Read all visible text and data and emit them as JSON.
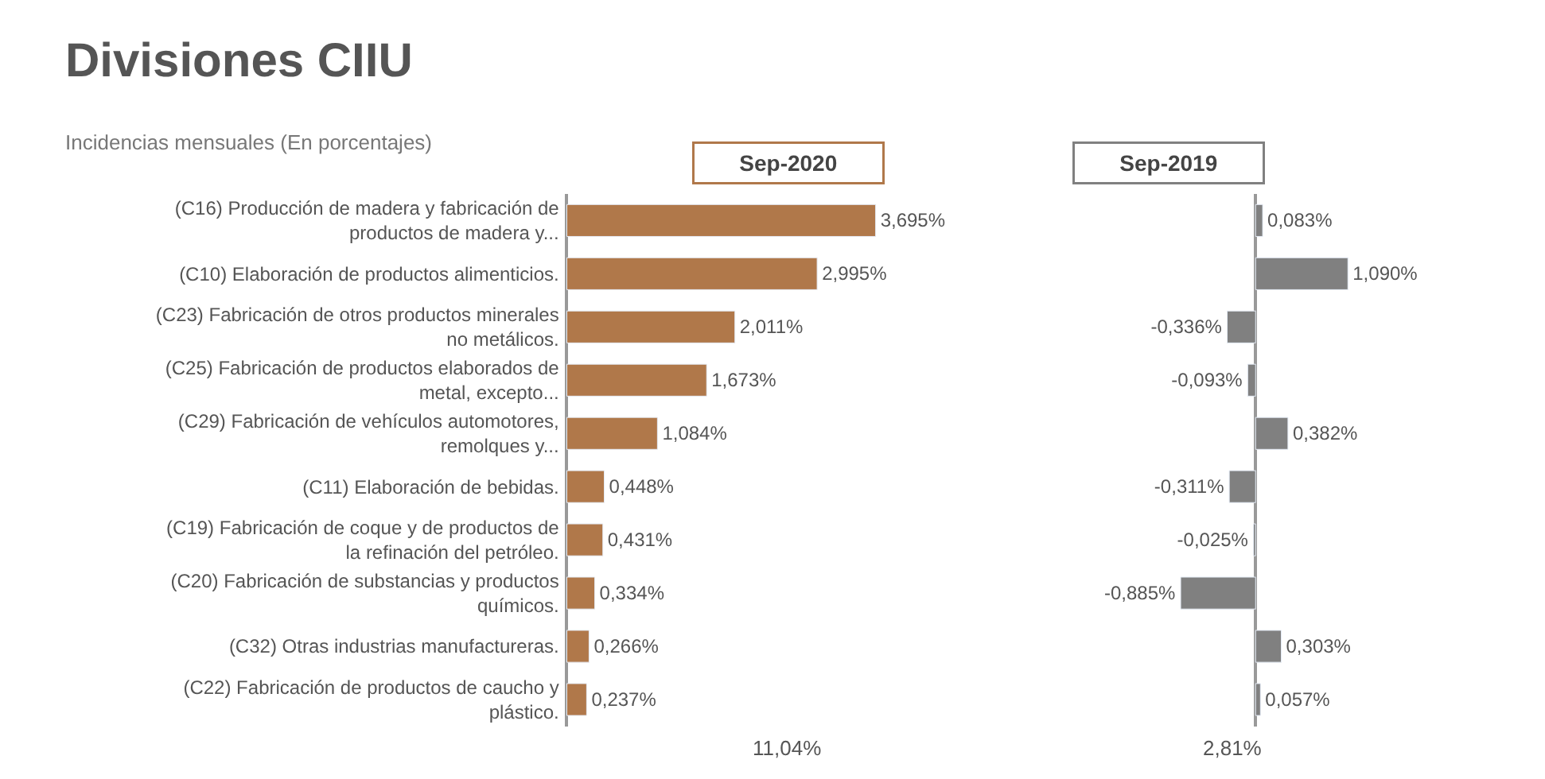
{
  "chart_data": [
    {
      "type": "bar",
      "orientation": "horizontal",
      "title": "Divisiones CIIU",
      "subtitle": "Incidencias mensuales (En porcentajes)",
      "tick_labels": "y",
      "categories": [
        "(C16) Producción de madera y fabricación de productos de madera y...",
        "(C10) Elaboración de productos alimenticios.",
        "(C23) Fabricación de otros productos minerales no metálicos.",
        "(C25) Fabricación de productos elaborados de metal, excepto...",
        "(C29) Fabricación de vehículos automotores, remolques y...",
        "(C11) Elaboración de bebidas.",
        "(C19) Fabricación de coque y de productos de la refinación del petróleo.",
        "(C20) Fabricación de substancias y productos químicos.",
        "(C32) Otras industrias manufactureras.",
        "(C22) Fabricación de productos de caucho y plástico."
      ],
      "series": [
        {
          "color": "#b0784a",
          "values": [
            3.695,
            2.995,
            2.011,
            1.673,
            1.084,
            0.448,
            0.431,
            0.334,
            0.266,
            0.237
          ],
          "value_labels": [
            "3,695%",
            "2,995%",
            "2,011%",
            "1,673%",
            "1,084%",
            "0,448%",
            "0,431%",
            "0,334%",
            "0,266%",
            "0,237%"
          ]
        }
      ],
      "annotations": [
        "Sep-2020",
        "11,04%"
      ]
    },
    {
      "type": "bar",
      "orientation": "horizontal",
      "tick_labels": false,
      "categories": [
        null,
        null,
        null,
        null,
        null,
        null,
        null,
        null,
        null,
        null
      ],
      "series": [
        {
          "color": "#808080",
          "values": [
            0.083,
            1.09,
            -0.336,
            -0.093,
            0.382,
            -0.311,
            -0.025,
            -0.885,
            0.303,
            0.057
          ],
          "value_labels": [
            "0,083%",
            "1,090%",
            "-0,336%",
            "-0,093%",
            "0,382%",
            "-0,311%",
            "-0,025%",
            "-0,885%",
            "0,303%",
            "0,057%"
          ]
        }
      ],
      "annotations": [
        "Sep-2019",
        "2,81%"
      ]
    }
  ]
}
